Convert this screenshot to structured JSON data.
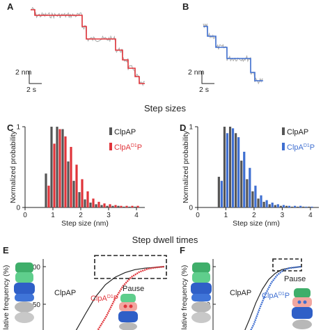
{
  "colors": {
    "clpap": "#555555",
    "red": "#e0343a",
    "blue": "#3f6fd1",
    "trace_gray": "#a9a9a9"
  },
  "panels": {
    "A": "A",
    "B": "B",
    "C": "C",
    "D": "D",
    "E": "E",
    "F": "F"
  },
  "scalebar": {
    "y_label": "2 nm",
    "x_label": "2 s"
  },
  "section_titles": {
    "step_sizes": "Step sizes",
    "dwell_times": "Step dwell times"
  },
  "chart_data": [
    {
      "id": "C",
      "type": "bar",
      "xlabel": "Step size (nm)",
      "ylabel": "Normalized probability",
      "xlim": [
        0,
        4.3
      ],
      "ylim": [
        0,
        1
      ],
      "xticks": [
        "0",
        "1",
        "2",
        "3",
        "4"
      ],
      "yticks": [
        "0",
        "1"
      ],
      "bin_centers": [
        0.8,
        1.0,
        1.2,
        1.4,
        1.6,
        1.8,
        2.0,
        2.2,
        2.4,
        2.6,
        2.8,
        3.0,
        3.2,
        3.4,
        3.6,
        3.8,
        4.0
      ],
      "series": [
        {
          "name": "ClpAP",
          "color": "#555555",
          "values": [
            0.42,
            1.0,
            1.0,
            0.97,
            0.57,
            0.33,
            0.19,
            0.1,
            0.06,
            0.04,
            0.03,
            0.02,
            0.02,
            0.02,
            0.01,
            0.01,
            0.01
          ]
        },
        {
          "name": "ClpA",
          "superscript": "D1",
          "suffix": "P",
          "color": "#e0343a",
          "values": [
            0.27,
            0.79,
            0.97,
            0.88,
            0.75,
            0.53,
            0.35,
            0.2,
            0.11,
            0.07,
            0.05,
            0.04,
            0.03,
            0.02,
            0.02,
            0.02,
            0.02
          ]
        }
      ],
      "legend": "top-right"
    },
    {
      "id": "D",
      "type": "bar",
      "xlabel": "Step size (nm)",
      "ylabel": "Normalized probability",
      "xlim": [
        0,
        4.3
      ],
      "ylim": [
        0,
        1
      ],
      "xticks": [
        "0",
        "1",
        "2",
        "3",
        "4"
      ],
      "yticks": [
        "0",
        "1"
      ],
      "bin_centers": [
        0.8,
        1.0,
        1.2,
        1.4,
        1.6,
        1.8,
        2.0,
        2.2,
        2.4,
        2.6,
        2.8,
        3.0,
        3.2,
        3.4,
        3.6,
        3.8,
        4.0
      ],
      "series": [
        {
          "name": "ClpAP",
          "color": "#555555",
          "values": [
            0.38,
            1.0,
            1.0,
            0.92,
            0.58,
            0.35,
            0.2,
            0.11,
            0.07,
            0.04,
            0.03,
            0.02,
            0.02,
            0.01,
            0.01,
            0.01,
            0.01
          ]
        },
        {
          "name": "ClpA",
          "superscript": "D1",
          "suffix": "P",
          "color": "#3f6fd1",
          "values": [
            0.33,
            0.92,
            0.98,
            0.87,
            0.69,
            0.49,
            0.27,
            0.15,
            0.09,
            0.06,
            0.04,
            0.03,
            0.02,
            0.02,
            0.02,
            0.01,
            0.01
          ]
        }
      ],
      "legend": "top-right"
    },
    {
      "id": "E",
      "type": "line",
      "ylabel": "Cumulative frequency (%)",
      "ylabel_visible": "ulative frequency (%)",
      "yticks": [
        "100",
        "50"
      ],
      "ylim": [
        0,
        100
      ],
      "series": [
        {
          "name": "ClpAP",
          "color": "#222222",
          "x": [
            0,
            0.1,
            0.2,
            0.3,
            0.4,
            0.5,
            0.6,
            0.7,
            0.8,
            0.9,
            1.0
          ],
          "y": [
            0,
            15,
            38,
            60,
            76,
            86,
            92,
            96,
            98,
            99,
            100
          ]
        },
        {
          "name": "ClpA",
          "superscript": "D1",
          "suffix": "P",
          "color": "#e0343a",
          "x": [
            0,
            0.1,
            0.2,
            0.3,
            0.4,
            0.5,
            0.6,
            0.7,
            0.8,
            0.9,
            1.0
          ],
          "y": [
            0,
            5,
            16,
            34,
            56,
            74,
            86,
            93,
            97,
            99,
            100
          ]
        }
      ],
      "annotation": "Pause"
    },
    {
      "id": "F",
      "type": "line",
      "ylabel": "Cumulative frequency (%)",
      "ylabel_visible": "ulative frequency (%)",
      "yticks": [
        "100",
        "50"
      ],
      "ylim": [
        0,
        100
      ],
      "series": [
        {
          "name": "ClpAP",
          "color": "#222222",
          "x": [
            0,
            0.1,
            0.2,
            0.3,
            0.4,
            0.5,
            0.6,
            0.7,
            0.8,
            0.9,
            1.0
          ],
          "y": [
            0,
            10,
            30,
            52,
            70,
            83,
            91,
            96,
            98,
            99,
            100
          ]
        },
        {
          "name": "ClpA",
          "superscript": "D1",
          "suffix": "P",
          "color": "#3f6fd1",
          "x": [
            0,
            0.1,
            0.2,
            0.3,
            0.4,
            0.5,
            0.6,
            0.7,
            0.8,
            0.9,
            1.0
          ],
          "y": [
            0,
            8,
            24,
            45,
            64,
            79,
            89,
            95,
            98,
            99,
            100
          ]
        }
      ],
      "annotation": "Pause"
    }
  ]
}
